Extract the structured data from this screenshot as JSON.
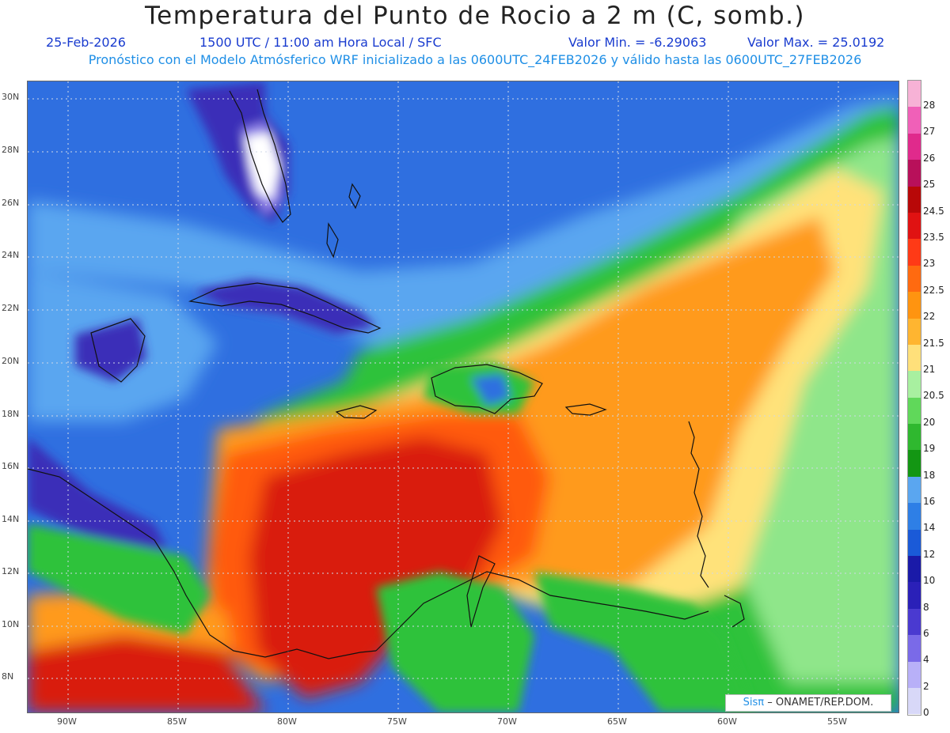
{
  "header": {
    "title": "Temperatura del Punto de Rocio a 2 m (C, somb.)",
    "date": "25-Feb-2026",
    "time": "1500 UTC / 11:00 am Hora Local / SFC",
    "min_value": "Valor Min. = -6.29063",
    "max_value": "Valor Max. = 25.0192",
    "model_info": "Pronóstico con el Modelo Atmósferico WRF inicializado a las 0600UTC_24FEB2026 y válido hasta las  0600UTC_27FEB2026"
  },
  "map": {
    "lat_labels": [
      "30N",
      "28N",
      "26N",
      "24N",
      "22N",
      "20N",
      "18N",
      "16N",
      "14N",
      "12N",
      "10N",
      "8N"
    ],
    "lon_labels": [
      "90W",
      "85W",
      "80W",
      "75W",
      "70W",
      "65W",
      "60W",
      "55W"
    ],
    "colors": {
      "ocean_north": "#2f6fe0",
      "ocean_light": "#5aa6f0",
      "green": "#2fc23a",
      "light_green": "#8fe68a",
      "yellow": "#ffe27a",
      "orange": "#ff9a1a",
      "dark_orange": "#ff5a10",
      "red": "#d91c0c",
      "purple": "#3a2fb8",
      "light_purple": "#8c7fe8"
    }
  },
  "colorbar": {
    "labels": [
      "28",
      "27",
      "26",
      "25",
      "24.5",
      "23.5",
      "23",
      "22.5",
      "22",
      "21.5",
      "21",
      "20.5",
      "20",
      "19",
      "18",
      "16",
      "14",
      "12",
      "10",
      "8",
      "6",
      "4",
      "2",
      "0"
    ],
    "colors": [
      "#f7b2d6",
      "#f060b8",
      "#e02a8c",
      "#b8105a",
      "#b80808",
      "#e01212",
      "#ff3a16",
      "#ff6a10",
      "#ff9410",
      "#ffb530",
      "#ffe07a",
      "#a8f0a0",
      "#60d85a",
      "#2fb82f",
      "#139613",
      "#5aa6f0",
      "#2e7fe6",
      "#1a5ad8",
      "#1a1aa8",
      "#2a20b8",
      "#4a3ad0",
      "#7a6ae8",
      "#b8b0f8",
      "#d8d8f8"
    ]
  },
  "logo": {
    "brand": "Sisπ",
    "org": "– ONAMET/REP.DOM."
  }
}
